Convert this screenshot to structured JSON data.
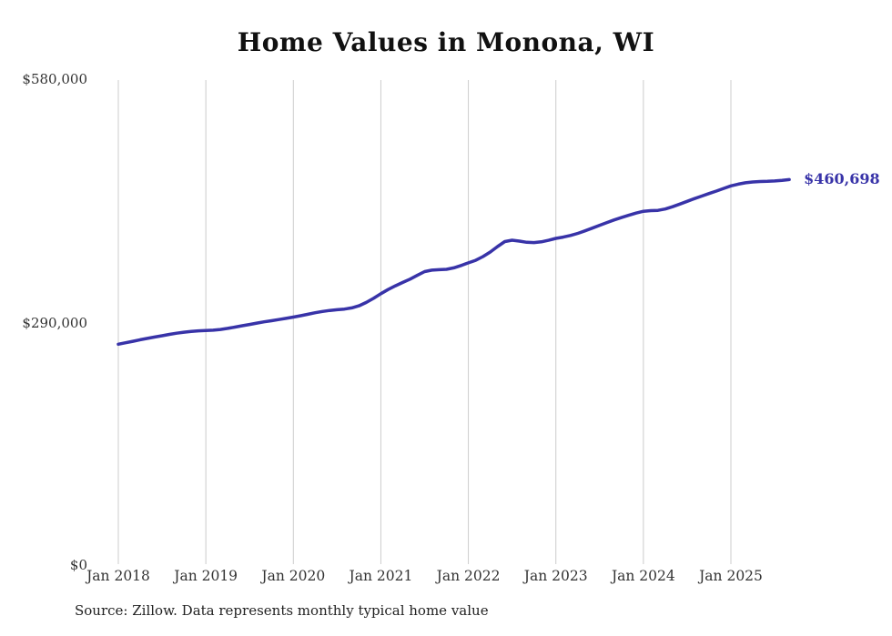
{
  "title": "Home Values in Monona, WI",
  "source_note": "Source: Zillow. Data represents monthly typical home value",
  "end_label": "$460,698",
  "colors": {
    "line": "#3833a8",
    "grid": "#cccccc",
    "end_label": "#3833a8",
    "tick_text": "#333333"
  },
  "chart_data": {
    "type": "line",
    "title": "Home Values in Monona, WI",
    "xlabel": "",
    "ylabel": "",
    "ylim": [
      0,
      580000
    ],
    "grid": "vertical",
    "legend_position": "none",
    "frequency": "monthly",
    "start_month": "Jan 2018",
    "end_month": "Sep 2025",
    "end_value": 460698,
    "y_tick_labels": [
      "$580,000",
      "$290,000",
      "$0"
    ],
    "y_tick_values": [
      580000,
      290000,
      0
    ],
    "x_tick_labels": [
      "Jan 2018",
      "Jan 2019",
      "Jan 2020",
      "Jan 2021",
      "Jan 2022",
      "Jan 2023",
      "Jan 2024",
      "Jan 2025"
    ],
    "series": [
      {
        "name": "Typical home value",
        "values": [
          263500,
          265200,
          267000,
          268800,
          270500,
          272100,
          273700,
          275300,
          276700,
          277900,
          278900,
          279500,
          279900,
          280300,
          281200,
          282500,
          284000,
          285600,
          287200,
          288800,
          290300,
          291600,
          293000,
          294500,
          296000,
          297600,
          299400,
          301200,
          302800,
          304000,
          304800,
          305600,
          307000,
          309500,
          313500,
          318500,
          324000,
          329000,
          333500,
          337500,
          341500,
          346000,
          350500,
          352300,
          352800,
          353200,
          355000,
          357800,
          361000,
          364000,
          368500,
          374000,
          380500,
          386500,
          388100,
          387000,
          385600,
          385300,
          386200,
          388000,
          390300,
          391800,
          393800,
          396300,
          399300,
          402600,
          406000,
          409300,
          412400,
          415300,
          418000,
          420600,
          422800,
          423600,
          423900,
          425500,
          428200,
          431400,
          434700,
          437900,
          441000,
          444000,
          447000,
          450200,
          453200,
          455300,
          456900,
          457900,
          458400,
          458700,
          459100,
          459800,
          460698
        ]
      }
    ]
  }
}
